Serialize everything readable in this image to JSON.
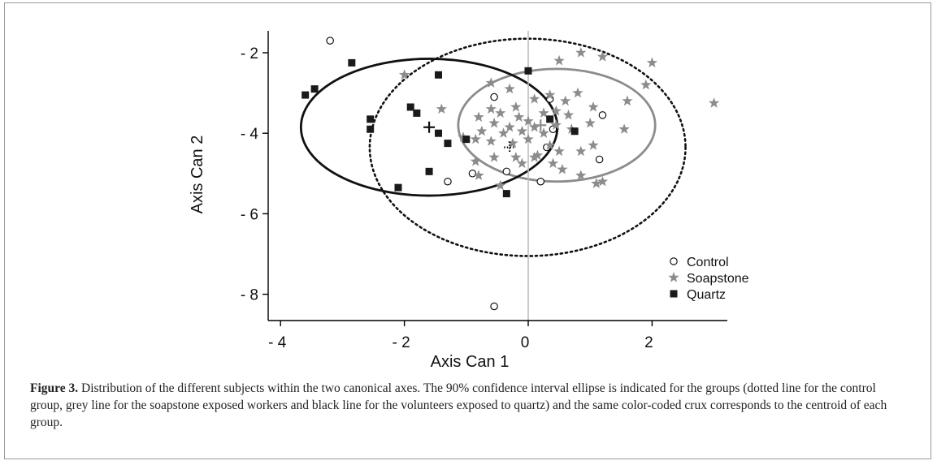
{
  "caption": {
    "label": "Figure 3.",
    "text": " Distribution of the different subjects within the two canonical axes. The 90% confidence interval ellipse is indicated for the groups (dotted line for the control group, grey line for the soapstone exposed workers and black line for the volunteers exposed to quartz) and the same color-coded crux corresponds to the centroid of each group."
  },
  "chart_data": {
    "type": "scatter",
    "xlabel": "Axis Can 1",
    "ylabel": "Axis Can 2",
    "xlim": [
      -4.3,
      3.2
    ],
    "ylim": [
      -8.6,
      -1.4
    ],
    "y_reversed": true,
    "xticks": [
      -4,
      -2,
      0,
      2
    ],
    "xtick_labels": [
      "- 4",
      "- 2",
      "0",
      "2"
    ],
    "yticks": [
      -2,
      -4,
      -6,
      -8
    ],
    "ytick_labels": [
      "- 2",
      "- 4",
      "- 6",
      "- 8"
    ],
    "grid": false,
    "reference_line_x": 0,
    "legend_position": "lower-right",
    "colors": {
      "control": "#000000",
      "soapstone": "#8c8c8c",
      "quartz": "#1a1a1a",
      "zero_line": "#bdbdbd"
    },
    "series": [
      {
        "name": "Control",
        "marker": "open-circle",
        "points": [
          [
            -3.2,
            -1.7
          ],
          [
            -0.55,
            -3.1
          ],
          [
            0.35,
            -3.15
          ],
          [
            1.2,
            -3.55
          ],
          [
            0.4,
            -3.9
          ],
          [
            0.3,
            -4.35
          ],
          [
            1.15,
            -4.65
          ],
          [
            -0.9,
            -5.0
          ],
          [
            -0.35,
            -4.95
          ],
          [
            -1.3,
            -5.2
          ],
          [
            0.2,
            -5.2
          ],
          [
            -0.55,
            -8.3
          ]
        ]
      },
      {
        "name": "Soapstone",
        "marker": "star",
        "points": [
          [
            -2.0,
            -2.55
          ],
          [
            0.5,
            -2.2
          ],
          [
            0.85,
            -2.0
          ],
          [
            1.2,
            -2.1
          ],
          [
            2.0,
            -2.25
          ],
          [
            1.9,
            -2.8
          ],
          [
            1.6,
            -3.2
          ],
          [
            3.0,
            -3.25
          ],
          [
            -0.6,
            -2.75
          ],
          [
            -0.3,
            -2.9
          ],
          [
            -1.4,
            -3.4
          ],
          [
            -0.6,
            -3.4
          ],
          [
            -0.2,
            -3.35
          ],
          [
            0.1,
            -3.15
          ],
          [
            0.35,
            -3.05
          ],
          [
            0.6,
            -3.2
          ],
          [
            0.8,
            -3.0
          ],
          [
            -0.8,
            -3.6
          ],
          [
            -0.45,
            -3.5
          ],
          [
            -0.15,
            -3.6
          ],
          [
            0.0,
            -3.7
          ],
          [
            0.25,
            -3.5
          ],
          [
            0.45,
            -3.45
          ],
          [
            0.65,
            -3.55
          ],
          [
            1.05,
            -3.35
          ],
          [
            -1.05,
            -4.1
          ],
          [
            -0.75,
            -3.95
          ],
          [
            -0.55,
            -3.75
          ],
          [
            -0.3,
            -3.85
          ],
          [
            -0.1,
            -3.95
          ],
          [
            0.1,
            -3.85
          ],
          [
            0.25,
            -4.0
          ],
          [
            0.45,
            -3.8
          ],
          [
            0.7,
            -3.9
          ],
          [
            1.0,
            -3.75
          ],
          [
            1.55,
            -3.9
          ],
          [
            -0.85,
            -4.15
          ],
          [
            -0.6,
            -4.2
          ],
          [
            -0.25,
            -4.25
          ],
          [
            0.0,
            -4.15
          ],
          [
            0.35,
            -4.3
          ],
          [
            0.5,
            -4.45
          ],
          [
            0.85,
            -4.45
          ],
          [
            1.05,
            -4.3
          ],
          [
            -0.85,
            -4.7
          ],
          [
            -0.55,
            -4.6
          ],
          [
            -0.2,
            -4.6
          ],
          [
            0.1,
            -4.6
          ],
          [
            0.4,
            -4.75
          ],
          [
            0.55,
            -4.9
          ],
          [
            0.85,
            -5.05
          ],
          [
            -0.8,
            -5.05
          ],
          [
            -0.45,
            -5.3
          ],
          [
            -0.1,
            -4.75
          ],
          [
            1.2,
            -5.2
          ],
          [
            1.1,
            -5.25
          ],
          [
            0.15,
            -4.55
          ],
          [
            -0.4,
            -4.0
          ]
        ]
      },
      {
        "name": "Quartz",
        "marker": "filled-square",
        "points": [
          [
            -3.6,
            -3.05
          ],
          [
            -3.45,
            -2.9
          ],
          [
            -2.85,
            -2.25
          ],
          [
            -2.55,
            -3.65
          ],
          [
            -2.55,
            -3.9
          ],
          [
            -1.9,
            -3.35
          ],
          [
            -1.8,
            -3.5
          ],
          [
            -1.45,
            -2.55
          ],
          [
            -1.45,
            -4.0
          ],
          [
            -1.3,
            -4.25
          ],
          [
            -1.0,
            -4.15
          ],
          [
            -1.6,
            -4.95
          ],
          [
            -2.1,
            -5.35
          ],
          [
            -0.35,
            -5.5
          ],
          [
            0.0,
            -2.45
          ],
          [
            0.35,
            -3.65
          ],
          [
            0.75,
            -3.95
          ]
        ]
      }
    ],
    "centroids": [
      {
        "group": "Control",
        "x": -0.3,
        "y": -4.35
      },
      {
        "group": "Soapstone",
        "x": 0.2,
        "y": -3.8
      },
      {
        "group": "Quartz",
        "x": -1.6,
        "y": -3.85
      }
    ],
    "ellipses": [
      {
        "group": "Control",
        "style": "dotted",
        "cx": -0.01,
        "cy": -4.35,
        "rx": 2.55,
        "ry": 2.7
      },
      {
        "group": "Soapstone",
        "style": "grey",
        "cx": 0.46,
        "cy": -3.8,
        "rx": 1.59,
        "ry": 1.4
      },
      {
        "group": "Quartz",
        "style": "black",
        "cx": -1.6,
        "cy": -3.85,
        "rx": 2.07,
        "ry": 1.7
      }
    ]
  }
}
